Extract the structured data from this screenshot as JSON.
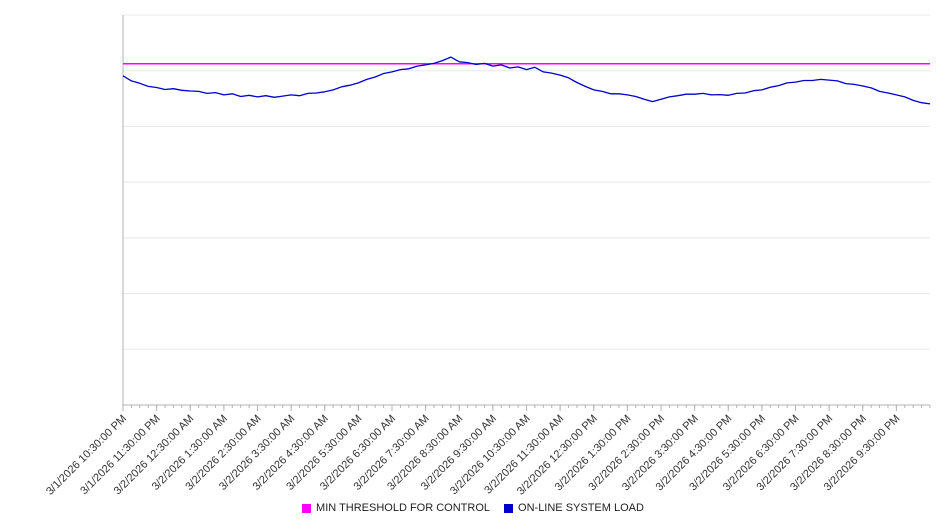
{
  "chart_data": {
    "type": "line",
    "title": "",
    "xlabel": "",
    "ylabel": "",
    "ylim": [
      0,
      100
    ],
    "grid": {
      "horizontal_lines": 8,
      "color": "#e8e8e8"
    },
    "axis_color": "#b3b3b3",
    "label_color": "#333333",
    "legend_position": "bottom",
    "x_tick_labels": [
      "3/1/2026 10:30:00 PM",
      "3/1/2026 11:30:00 PM",
      "3/2/2026 12:30:00 AM",
      "3/2/2026 1:30:00 AM",
      "3/2/2026 2:30:00 AM",
      "3/2/2026 3:30:00 AM",
      "3/2/2026 4:30:00 AM",
      "3/2/2026 5:30:00 AM",
      "3/2/2026 6:30:00 AM",
      "3/2/2026 7:30:00 AM",
      "3/2/2026 8:30:00 AM",
      "3/2/2026 9:30:00 AM",
      "3/2/2026 10:30:00 AM",
      "3/2/2026 11:30:00 AM",
      "3/2/2026 12:30:00 PM",
      "3/2/2026 1:30:00 PM",
      "3/2/2026 2:30:00 PM",
      "3/2/2026 3:30:00 PM",
      "3/2/2026 4:30:00 PM",
      "3/2/2026 5:30:00 PM",
      "3/2/2026 6:30:00 PM",
      "3/2/2026 7:30:00 PM",
      "3/2/2026 8:30:00 PM",
      "3/2/2026 9:30:00 PM"
    ],
    "series": [
      {
        "name": "MIN THRESHOLD FOR CONTROL",
        "type": "threshold",
        "color": "#FF00FF",
        "value": 87.5
      },
      {
        "name": "ON-LINE SYSTEM LOAD",
        "type": "line",
        "color": "#0000CD",
        "points_per_hour": 4,
        "values": [
          84.4,
          83.1,
          82.5,
          81.7,
          81.4,
          80.9,
          81.1,
          80.7,
          80.5,
          80.4,
          79.9,
          80.1,
          79.5,
          79.8,
          79.1,
          79.4,
          79.0,
          79.3,
          78.9,
          79.2,
          79.5,
          79.3,
          79.9,
          80.0,
          80.3,
          80.8,
          81.6,
          82.0,
          82.6,
          83.5,
          84.1,
          85.0,
          85.4,
          86.0,
          86.2,
          86.9,
          87.2,
          87.6,
          88.3,
          89.2,
          88.0,
          87.8,
          87.3,
          87.6,
          86.9,
          87.2,
          86.4,
          86.7,
          86.0,
          86.6,
          85.4,
          85.1,
          84.6,
          83.9,
          82.7,
          81.7,
          80.8,
          80.4,
          79.8,
          79.8,
          79.5,
          79.1,
          78.4,
          77.8,
          78.4,
          79.0,
          79.3,
          79.7,
          79.7,
          79.9,
          79.5,
          79.6,
          79.4,
          79.9,
          80.0,
          80.6,
          80.8,
          81.5,
          81.9,
          82.6,
          82.8,
          83.2,
          83.2,
          83.5,
          83.3,
          83.1,
          82.4,
          82.2,
          81.8,
          81.3,
          80.4,
          80.0,
          79.5,
          79.0,
          78.1,
          77.5,
          77.2
        ]
      }
    ]
  }
}
